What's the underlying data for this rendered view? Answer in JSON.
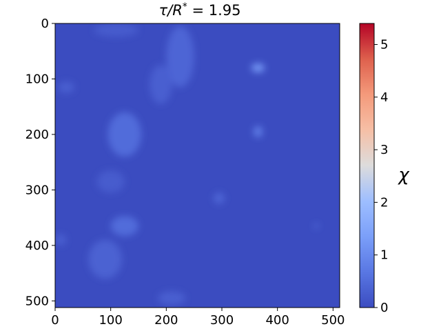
{
  "chart_data": {
    "type": "heatmap",
    "title_parts": {
      "tau": "τ",
      "slash_r": "/R",
      "star": "*",
      "equals": " = 1.95"
    },
    "x_ticks": [
      0,
      100,
      200,
      300,
      400,
      500
    ],
    "y_ticks": [
      0,
      100,
      200,
      300,
      400,
      500
    ],
    "xlim": [
      0,
      512
    ],
    "ylim": [
      512,
      0
    ],
    "colorbar": {
      "label": "χ",
      "colormap": "coolwarm",
      "range": [
        0,
        5.4
      ],
      "ticks": [
        0,
        1,
        2,
        3,
        4,
        5
      ]
    },
    "background_value": 0.0,
    "features": [
      {
        "x": 110,
        "y": 12,
        "rx": 40,
        "ry": 12,
        "value": 0.25
      },
      {
        "x": 225,
        "y": 60,
        "rx": 25,
        "ry": 55,
        "value": 0.4
      },
      {
        "x": 190,
        "y": 110,
        "rx": 20,
        "ry": 35,
        "value": 0.3
      },
      {
        "x": 365,
        "y": 80,
        "rx": 12,
        "ry": 8,
        "value": 1.2
      },
      {
        "x": 20,
        "y": 115,
        "rx": 15,
        "ry": 10,
        "value": 0.3
      },
      {
        "x": 125,
        "y": 200,
        "rx": 30,
        "ry": 40,
        "value": 0.5
      },
      {
        "x": 365,
        "y": 195,
        "rx": 8,
        "ry": 10,
        "value": 0.8
      },
      {
        "x": 100,
        "y": 285,
        "rx": 25,
        "ry": 20,
        "value": 0.25
      },
      {
        "x": 295,
        "y": 315,
        "rx": 10,
        "ry": 10,
        "value": 0.4
      },
      {
        "x": 125,
        "y": 365,
        "rx": 25,
        "ry": 18,
        "value": 0.5
      },
      {
        "x": 470,
        "y": 365,
        "rx": 4,
        "ry": 4,
        "value": 0.6
      },
      {
        "x": 90,
        "y": 425,
        "rx": 30,
        "ry": 35,
        "value": 0.35
      },
      {
        "x": 10,
        "y": 390,
        "rx": 10,
        "ry": 10,
        "value": 0.3
      },
      {
        "x": 210,
        "y": 495,
        "rx": 25,
        "ry": 12,
        "value": 0.3
      }
    ]
  }
}
